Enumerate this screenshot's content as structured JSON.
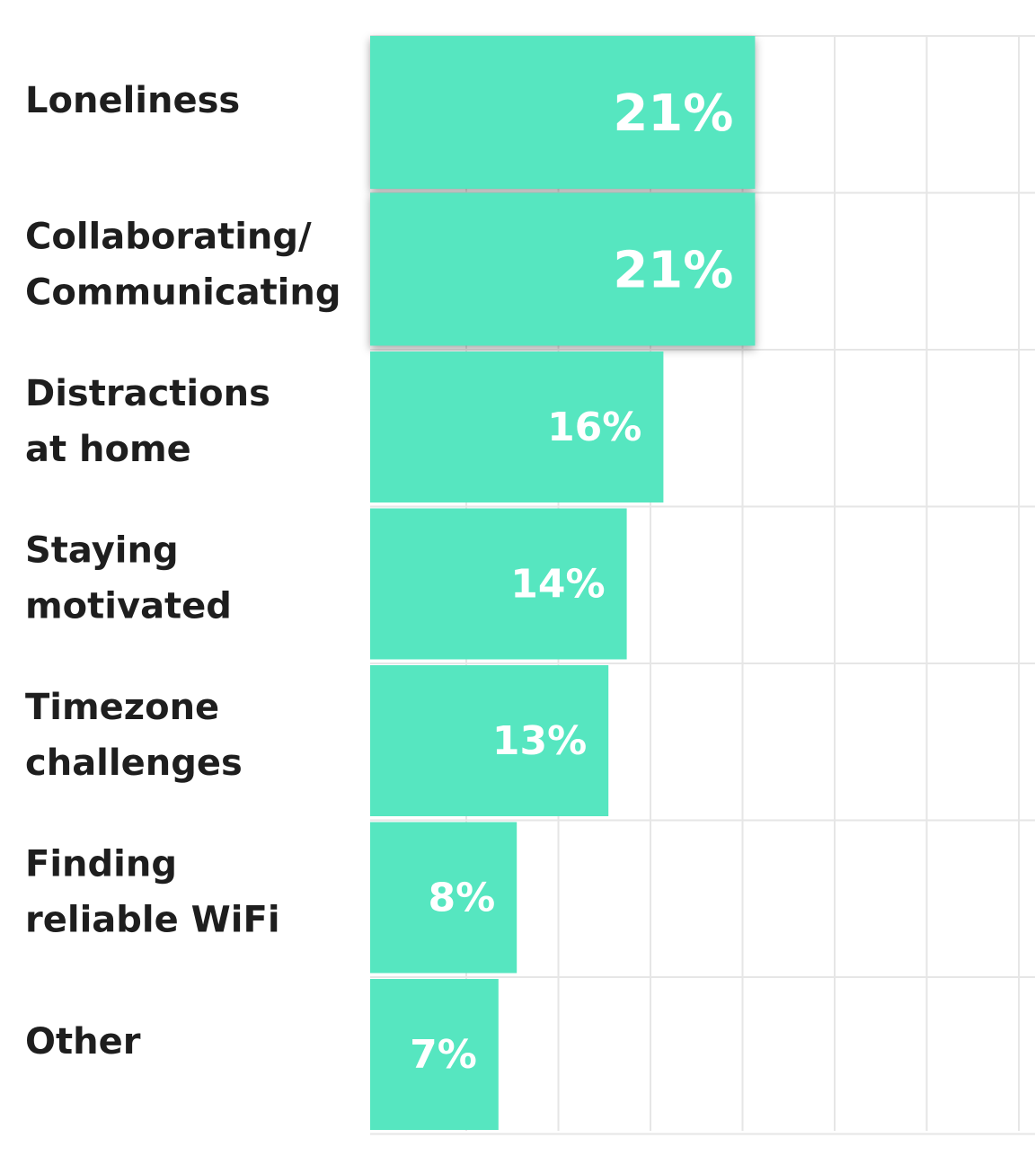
{
  "chart_data": {
    "type": "bar",
    "orientation": "horizontal",
    "categories": [
      [
        "Loneliness"
      ],
      [
        "Collaborating/",
        "Communicating"
      ],
      [
        "Distractions",
        "at home"
      ],
      [
        "Staying",
        "motivated"
      ],
      [
        "Timezone",
        "challenges"
      ],
      [
        "Finding",
        "reliable WiFi"
      ],
      [
        "Other"
      ]
    ],
    "values": [
      21,
      21,
      16,
      14,
      13,
      8,
      7
    ],
    "value_labels": [
      "21%",
      "21%",
      "16%",
      "14%",
      "13%",
      "8%",
      "7%"
    ],
    "highlighted": [
      true,
      true,
      false,
      false,
      false,
      false,
      false
    ],
    "xlim": [
      0,
      36
    ],
    "grid": true,
    "title": "",
    "xlabel": "",
    "ylabel": ""
  },
  "colors": {
    "bar": "#56e6c0",
    "grid": "#e6e6e6",
    "label_text": "#1e1e1e",
    "value_text": "#ffffff"
  }
}
